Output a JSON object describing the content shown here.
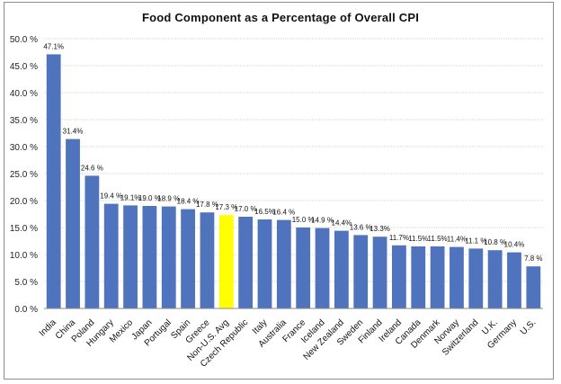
{
  "chart_data": {
    "type": "bar",
    "title": "Food Component  as a Percentage of Overall CPI",
    "xlabel": "",
    "ylabel": "",
    "ylim": [
      0,
      50
    ],
    "ytick_step": 5,
    "ytick_labels": [
      "0.0 %",
      "5.0 %",
      "10.0 %",
      "15.0 %",
      "20.0 %",
      "25.0 %",
      "30.0 %",
      "35.0 %",
      "40.0 %",
      "45.0 %",
      "50.0 %"
    ],
    "grid": true,
    "legend": "none",
    "categories": [
      "India",
      "China",
      "Poland",
      "Hungary",
      "Mexico",
      "Japan",
      "Portugal",
      "Spain",
      "Greece",
      "Non-U.S. Avg",
      "Czech Republic",
      "Italy",
      "Australia",
      "France",
      "Iceland",
      "New Zealand",
      "Sweden",
      "Finland",
      "Ireland",
      "Canada",
      "Denmark",
      "Norway",
      "Switzerland",
      "U.K.",
      "Germany",
      "U.S."
    ],
    "values": [
      47.1,
      31.4,
      24.6,
      19.4,
      19.1,
      19.0,
      18.9,
      18.4,
      17.8,
      17.3,
      17.0,
      16.5,
      16.4,
      15.0,
      14.9,
      14.4,
      13.6,
      13.3,
      11.7,
      11.5,
      11.5,
      11.4,
      11.1,
      10.8,
      10.4,
      7.8
    ],
    "data_labels": [
      "47.1%",
      "31.4%",
      "24.6 %",
      "19.4 %",
      "19.1%",
      "19.0 %",
      "18.9 %",
      "18.4 %",
      "17.8 %",
      "17.3 %",
      "17.0 %",
      "16.5%",
      "16.4 %",
      "15.0 %",
      "14.9 %",
      "14.4%",
      "13.6 %",
      "13.3%",
      "11.7%",
      "11.5%",
      "11.5%",
      "11.4%",
      "11.1 %",
      "10.8 %",
      "10.4%",
      "7.8 %"
    ],
    "highlight": "Non-U.S. Avg",
    "colors": {
      "bar": "#4f74bd",
      "highlight": "#ffff00",
      "grid": "#d4d4d4",
      "axis": "#888888"
    }
  }
}
